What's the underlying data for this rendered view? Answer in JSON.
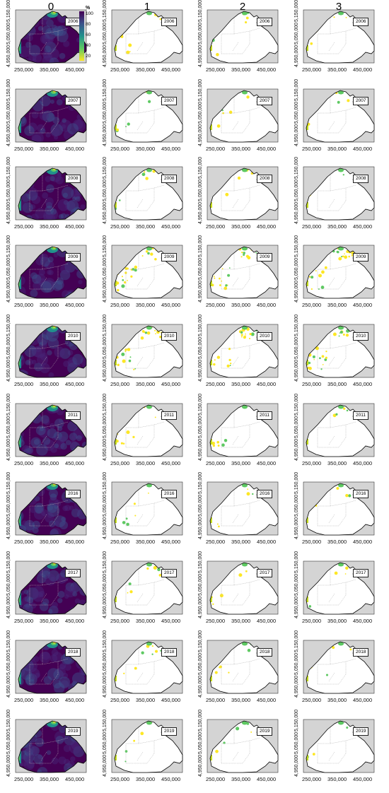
{
  "columns": [
    "0",
    "1",
    "2",
    "3"
  ],
  "years": [
    "2006",
    "2007",
    "2008",
    "2009",
    "2010",
    "2011",
    "2016",
    "2017",
    "2018",
    "2019"
  ],
  "axes": {
    "y_ticks": [
      "4,950,000",
      "5,050,000",
      "5,150,000"
    ],
    "x_ticks": [
      "250,000",
      "350,000",
      "450,000"
    ]
  },
  "legend": {
    "unit": "%",
    "ticks": [
      "100",
      "80",
      "60",
      "40",
      "20"
    ]
  },
  "colors": {
    "land": "#d4d4d4",
    "region_dark": "#440154",
    "outline": "#000000",
    "viridis": [
      "#440154",
      "#3b528b",
      "#21918c",
      "#5ec962",
      "#fde725"
    ]
  }
}
